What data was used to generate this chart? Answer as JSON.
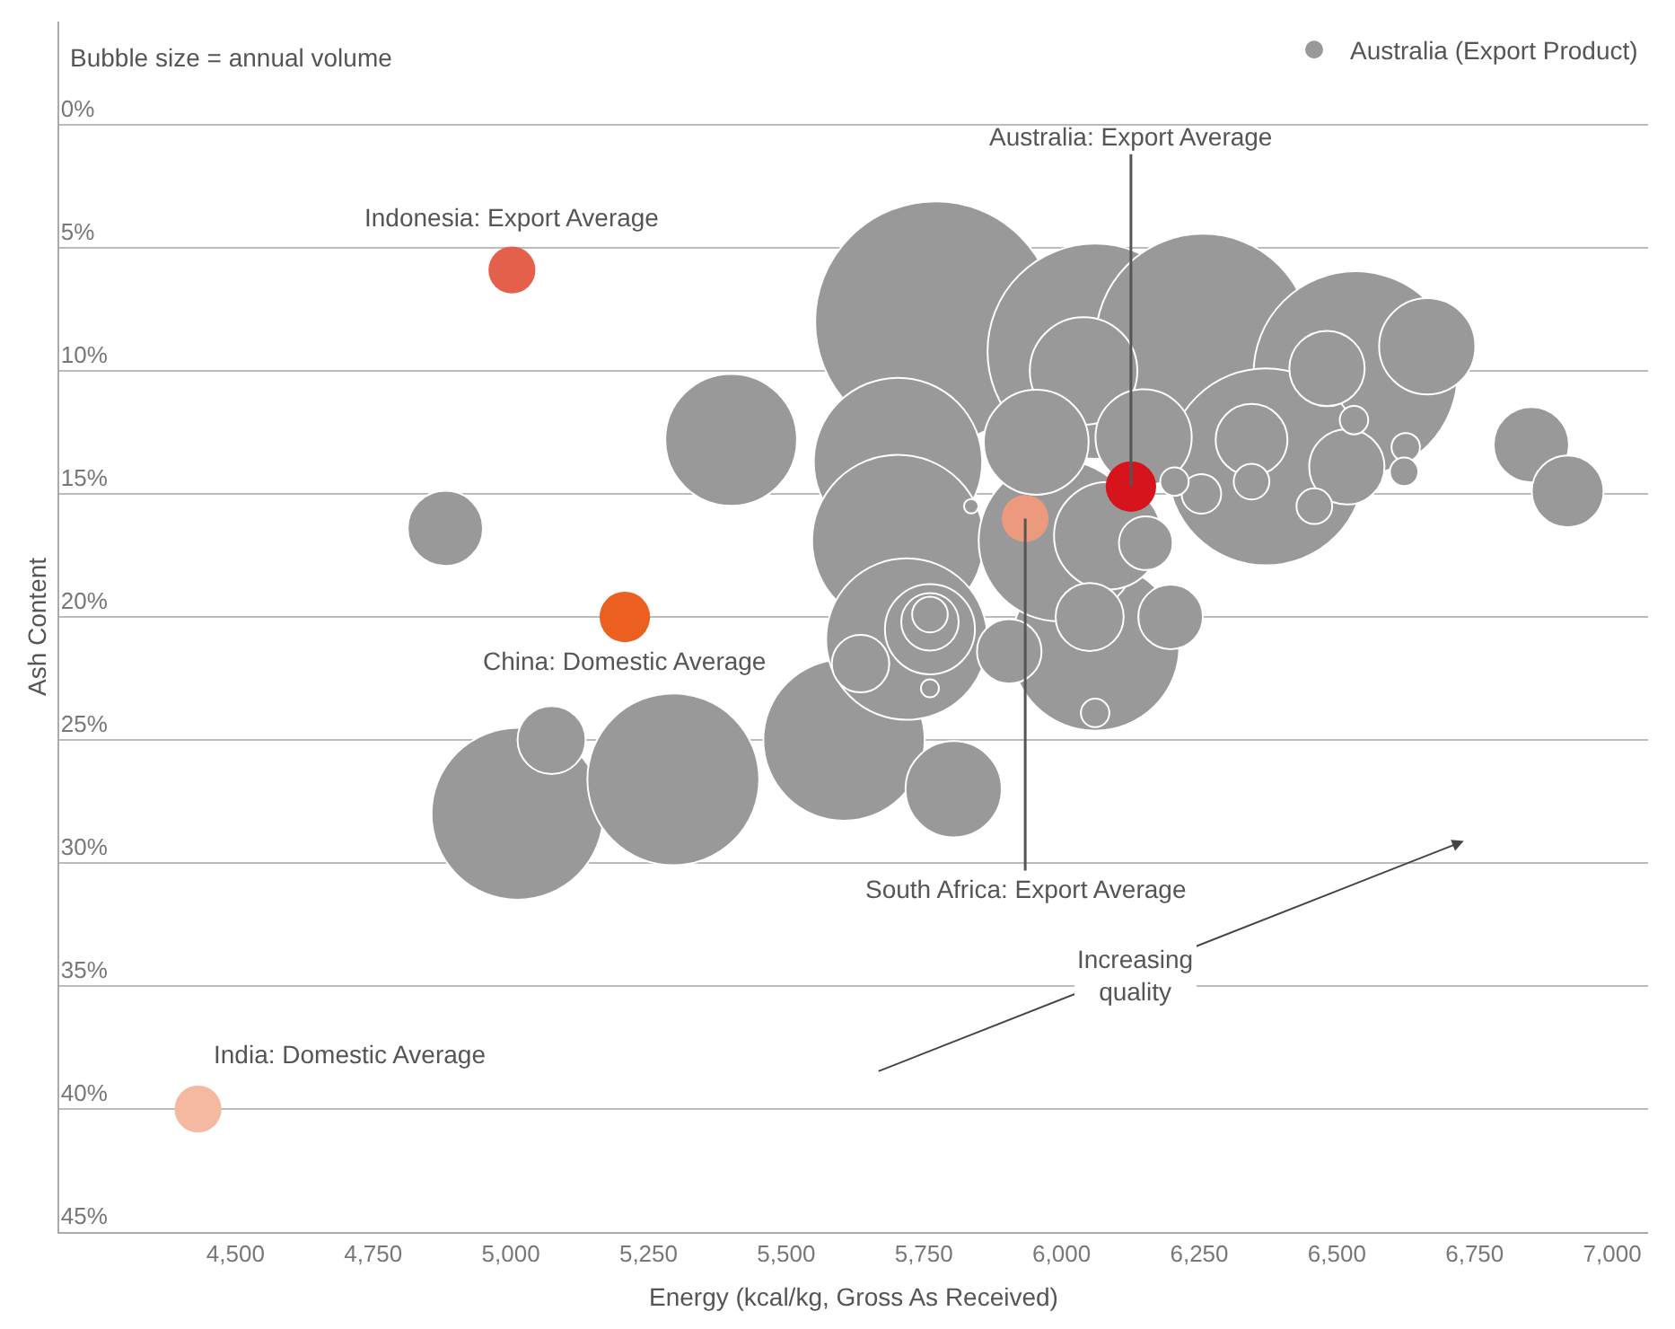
{
  "chart_data": {
    "type": "bubble",
    "xlabel": "Energy (kcal/kg, Gross As Received)",
    "ylabel": "Ash Content",
    "xlim": [
      4180,
      7065
    ],
    "xticks": [
      {
        "value": 4500,
        "label": "4,500"
      },
      {
        "value": 4750,
        "label": "4,750"
      },
      {
        "value": 5000,
        "label": "5,000"
      },
      {
        "value": 5250,
        "label": "5,250"
      },
      {
        "value": 5500,
        "label": "5,500"
      },
      {
        "value": 5750,
        "label": "5,750"
      },
      {
        "value": 6000,
        "label": "6,000"
      },
      {
        "value": 6250,
        "label": "6,250"
      },
      {
        "value": 6500,
        "label": "6,500"
      },
      {
        "value": 6750,
        "label": "6,750"
      },
      {
        "value": 7000,
        "label": "7,000"
      }
    ],
    "ylim": [
      45,
      -4.2
    ],
    "yticks": [
      {
        "value": 0,
        "label": "0%"
      },
      {
        "value": 5,
        "label": "5%"
      },
      {
        "value": 10,
        "label": "10%"
      },
      {
        "value": 15,
        "label": "15%"
      },
      {
        "value": 20,
        "label": "20%"
      },
      {
        "value": 25,
        "label": "25%"
      },
      {
        "value": 30,
        "label": "30%"
      },
      {
        "value": 35,
        "label": "35%"
      },
      {
        "value": 40,
        "label": "40%"
      },
      {
        "value": 45,
        "label": "45%"
      }
    ],
    "grid": "y",
    "legend": "top right",
    "series": [
      {
        "name": "Australia (Export Product)",
        "color": "#999999",
        "x": [
          5771,
          6061,
          6257,
          6534,
          6371,
          6061,
          5012,
          5295,
          5703,
          5703,
          5605,
          5719,
          5996,
          5400,
          6040,
          5954,
          6084,
          6664,
          6149,
          5804,
          5761,
          4881,
          6853,
          6482,
          6345,
          6518,
          6919,
          6051,
          5074,
          5905,
          6198,
          5635,
          5761,
          6153,
          6254,
          5761,
          6345,
          6459,
          6205,
          6531,
          6625,
          6622,
          6061,
          5761,
          5836
        ],
        "values": [
          8.0,
          9.2,
          8.8,
          10.1,
          13.9,
          21.2,
          28.0,
          26.6,
          13.7,
          16.9,
          25.0,
          20.9,
          16.9,
          12.8,
          10.0,
          12.9,
          16.7,
          9.0,
          12.7,
          27.0,
          20.5,
          16.4,
          13.0,
          9.9,
          12.8,
          13.9,
          14.9,
          20.0,
          25.0,
          21.4,
          20.0,
          21.9,
          20.2,
          17.0,
          15.0,
          19.9,
          14.5,
          15.5,
          14.5,
          12.0,
          13.1,
          14.1,
          23.9,
          22.9,
          15.5
        ],
        "sizes": [
          1,
          0.8,
          0.8,
          0.72,
          0.67,
          0.49,
          0.51,
          0.51,
          0.49,
          0.51,
          0.45,
          0.45,
          0.45,
          0.3,
          0.2,
          0.19,
          0.2,
          0.16,
          0.16,
          0.16,
          0.14,
          0.098,
          0.098,
          0.098,
          0.089,
          0.098,
          0.089,
          0.08,
          0.08,
          0.072,
          0.072,
          0.057,
          0.057,
          0.05,
          0.027,
          0.022,
          0.022,
          0.022,
          0.014,
          0.014,
          0.014,
          0.014,
          0.014,
          0.0056,
          0.0036
        ]
      },
      {
        "colors": [
          "#e5604a",
          "#eb6020",
          "#f4b9a0",
          "#ec9a7e",
          "#d7141c"
        ],
        "x": [
          5002,
          5207,
          4432,
          5934,
          6126
        ],
        "values": [
          5.9,
          20.0,
          40.0,
          16.0,
          14.7
        ],
        "sizes": [
          0.038,
          0.044,
          0.038,
          0.038,
          0.044
        ]
      }
    ],
    "annotations": [
      "Bubble size = annual volume",
      "Increasing\nquality",
      {
        "text": "Indonesia: Export Average",
        "x": 5002,
        "y": 5.9
      },
      {
        "text": "China: Domestic Average",
        "x": 5207,
        "y": 20.0
      },
      {
        "text": "India: Domestic Average",
        "x": 4432,
        "y": 40.0
      },
      {
        "text": "South Africa: Export Average",
        "x": 5934,
        "y": 16.0
      },
      {
        "text": "Australia: Export Average",
        "x": 6126,
        "y": 14.7
      }
    ]
  }
}
